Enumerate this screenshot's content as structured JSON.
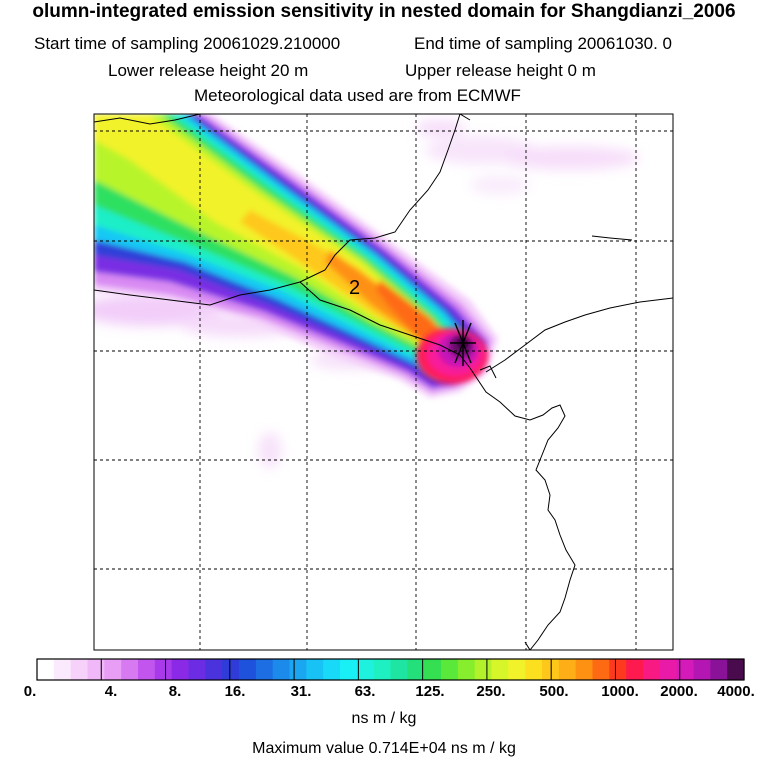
{
  "header": {
    "title": "olumn-integrated emission sensitivity in nested domain for Shangdianzi_2006",
    "start_label": "Start time of sampling 20061029.210000",
    "end_label": "End time of sampling 20061030.     0",
    "lower_label": "Lower release height   20 m",
    "upper_label": "Upper release height    0 m",
    "met_label": "Meteorological data used are from ECMWF"
  },
  "map": {
    "contour_label": "2",
    "station_marker": "Shangdianzi"
  },
  "colorbar": {
    "tick_labels": [
      "0.",
      "4.",
      "8.",
      "16.",
      "31.",
      "63.",
      "125.",
      "250.",
      "500.",
      "1000.",
      "2000.",
      "4000."
    ],
    "colors": [
      "#ffffff",
      "#fbeafd",
      "#f6d2fb",
      "#f0b8f8",
      "#e99ef5",
      "#d77af2",
      "#c155ee",
      "#a83aea",
      "#8a2ae6",
      "#6b2ce3",
      "#4a32dd",
      "#2f3cd8",
      "#1e52dd",
      "#1d6ee3",
      "#1c8aea",
      "#1aa6f0",
      "#18c2f5",
      "#18daf8",
      "#18f0f6",
      "#1ef2de",
      "#1ef0c2",
      "#1ee6a2",
      "#24e07a",
      "#34e052",
      "#5ae83a",
      "#86ee2c",
      "#b2f22a",
      "#d6f62a",
      "#f2f22a",
      "#fce020",
      "#fec81a",
      "#feae16",
      "#fe9012",
      "#fe6a14",
      "#fe3a1e",
      "#fe1a4e",
      "#f81a82",
      "#ea1aa8",
      "#d41ab8",
      "#b416b4",
      "#8a1298",
      "#4a0a4e"
    ],
    "units": "ns m / kg",
    "maximum_label": "Maximum value  0.714E+04 ns m / kg"
  }
}
